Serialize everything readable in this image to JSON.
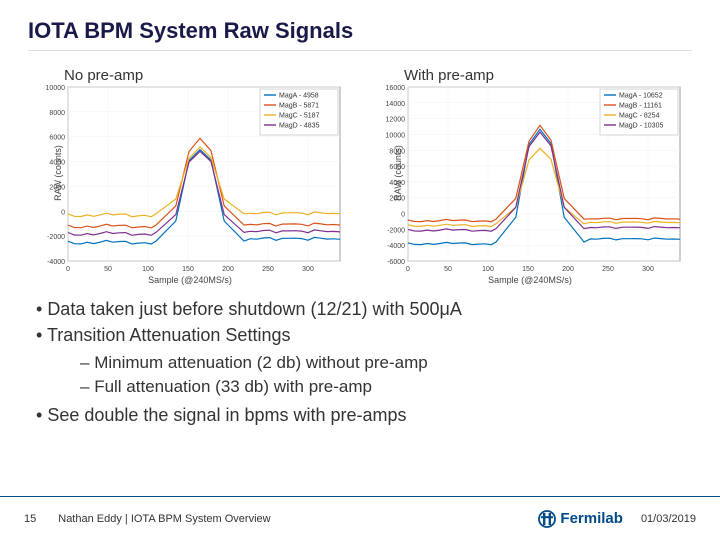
{
  "title": "IOTA BPM System Raw Signals",
  "chart_left": {
    "title": "No pre-amp",
    "xlabel": "Sample (@240MS/s)",
    "ylabel": "RAW (counts)",
    "xlim": [
      0,
      340
    ],
    "ylim": [
      -4000,
      10000
    ],
    "ytick_step": 2000,
    "background_color": "#ffffff",
    "grid_color": "#f0f0f0",
    "axis_color": "#888888",
    "legend": [
      {
        "label": "MagA - 4958",
        "color": "#0072bd"
      },
      {
        "label": "MagB - 5871",
        "color": "#d95319"
      },
      {
        "label": "MagC - 5187",
        "color": "#edb120"
      },
      {
        "label": "MagD - 4835",
        "color": "#7e2f8e"
      }
    ],
    "legend_fontsize": 7,
    "series": [
      {
        "color": "#0072bd",
        "width": 1.2,
        "baseline": -2400,
        "peak": 4960,
        "pre_noise": -2500,
        "post_noise": -2200
      },
      {
        "color": "#d95319",
        "width": 1.2,
        "baseline": -1100,
        "peak": 5870,
        "pre_noise": -1200,
        "post_noise": -1050
      },
      {
        "color": "#edb120",
        "width": 1.2,
        "baseline": -200,
        "peak": 5190,
        "pre_noise": -300,
        "post_noise": -150
      },
      {
        "color": "#7e2f8e",
        "width": 1.2,
        "baseline": -1700,
        "peak": 4830,
        "pre_noise": -1800,
        "post_noise": -1600
      }
    ],
    "peak_x": 165,
    "peak_width": 55
  },
  "chart_right": {
    "title": "With pre-amp",
    "xlabel": "Sample (@240MS/s)",
    "ylabel": "RAW (counts)",
    "xlim": [
      0,
      340
    ],
    "ylim": [
      -6000,
      16000
    ],
    "ytick_step": 2000,
    "background_color": "#ffffff",
    "grid_color": "#f0f0f0",
    "axis_color": "#888888",
    "legend": [
      {
        "label": "MagA - 10652",
        "color": "#0072bd"
      },
      {
        "label": "MagB - 11161",
        "color": "#d95319"
      },
      {
        "label": "MagC - 8254",
        "color": "#edb120"
      },
      {
        "label": "MagD - 10305",
        "color": "#7e2f8e"
      }
    ],
    "legend_fontsize": 7,
    "series": [
      {
        "color": "#0072bd",
        "width": 1.2,
        "baseline": -3600,
        "peak": 10650,
        "pre_noise": -3800,
        "post_noise": -3200
      },
      {
        "color": "#d95319",
        "width": 1.2,
        "baseline": -700,
        "peak": 11160,
        "pre_noise": -900,
        "post_noise": -650
      },
      {
        "color": "#edb120",
        "width": 1.2,
        "baseline": -1300,
        "peak": 8250,
        "pre_noise": -1500,
        "post_noise": -1100
      },
      {
        "color": "#7e2f8e",
        "width": 1.2,
        "baseline": -1900,
        "peak": 10300,
        "pre_noise": -2100,
        "post_noise": -1750
      }
    ],
    "peak_x": 165,
    "peak_width": 55
  },
  "bullets": [
    "Data taken just before shutdown (12/21) with 500μA",
    "Transition Attenuation Settings"
  ],
  "sub_bullets": [
    "Minimum attenuation (2 db) without pre-amp",
    "Full attenuation (33 db) with pre-amp"
  ],
  "bullets_after": [
    "See double the signal in bpms with pre-amps"
  ],
  "footer": {
    "slide_num": "15",
    "title": "Nathan Eddy | IOTA BPM System Overview",
    "date": "01/03/2019",
    "logo_text": "Fermilab",
    "logo_color": "#004B87"
  }
}
